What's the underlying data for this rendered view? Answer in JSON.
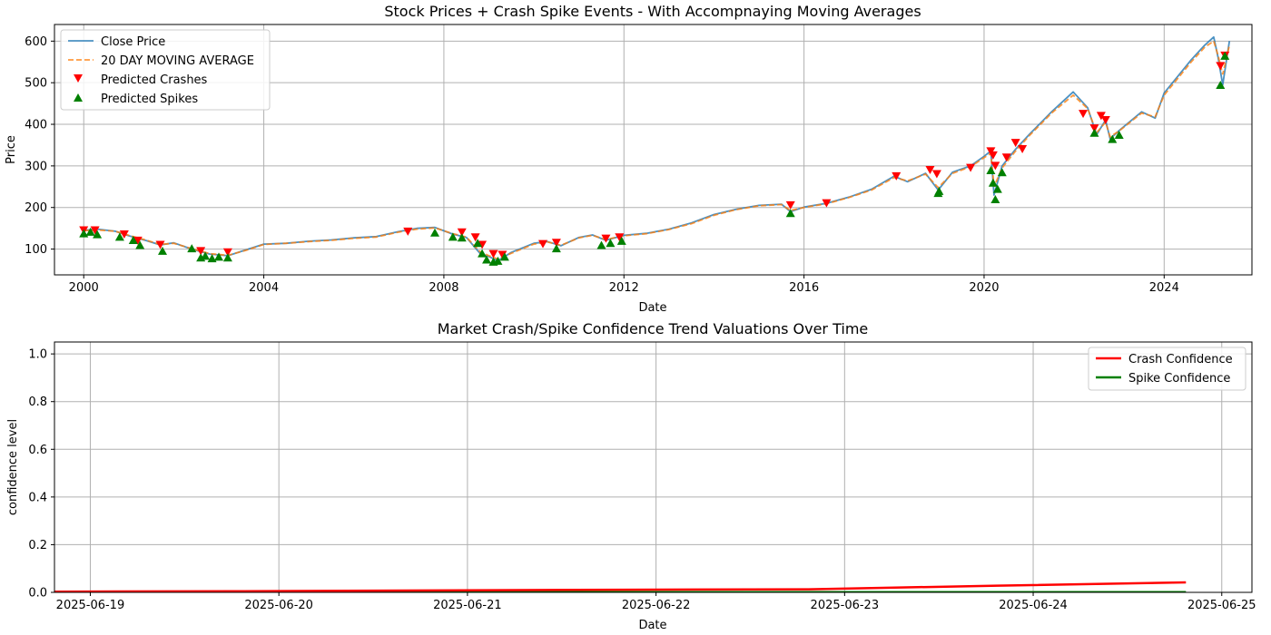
{
  "chart_data": [
    {
      "type": "line",
      "title": "Stock Prices + Crash Spike Events - With Accompnaying Moving Averages",
      "xlabel": "Date",
      "ylabel": "Price",
      "xlim": [
        1999.35,
        2025.95
      ],
      "ylim": [
        38,
        640
      ],
      "grid": true,
      "legend_position": "top-left",
      "x_ticks": [
        2000,
        2004,
        2008,
        2012,
        2016,
        2020,
        2024
      ],
      "x_tick_labels": [
        "2000",
        "2004",
        "2008",
        "2012",
        "2016",
        "2020",
        "2024"
      ],
      "y_ticks": [
        100,
        200,
        300,
        400,
        500,
        600
      ],
      "y_tick_labels": [
        "100",
        "200",
        "300",
        "400",
        "500",
        "600"
      ],
      "legend": [
        "Close Price",
        "20 DAY MOVING AVERAGE",
        "Predicted Crashes",
        "Predicted Spikes"
      ],
      "colors": {
        "close": "#1f77b4",
        "ma": "#ff7f0e",
        "crash": "#ff0000",
        "spike": "#008000"
      },
      "series": [
        {
          "name": "Close Price",
          "x": [
            2000.0,
            2000.3,
            2000.7,
            2001.0,
            2001.4,
            2001.7,
            2002.0,
            2002.4,
            2002.8,
            2003.2,
            2003.6,
            2004.0,
            2004.5,
            2005.0,
            2005.5,
            2006.0,
            2006.5,
            2007.0,
            2007.4,
            2007.8,
            2008.2,
            2008.5,
            2008.8,
            2009.0,
            2009.2,
            2009.5,
            2010.0,
            2010.3,
            2010.6,
            2011.0,
            2011.3,
            2011.6,
            2012.0,
            2012.5,
            2013.0,
            2013.5,
            2014.0,
            2014.5,
            2015.0,
            2015.5,
            2015.7,
            2016.0,
            2016.5,
            2017.0,
            2017.5,
            2018.0,
            2018.3,
            2018.7,
            2018.98,
            2019.3,
            2019.7,
            2020.0,
            2020.15,
            2020.22,
            2020.4,
            2020.7,
            2021.0,
            2021.5,
            2021.98,
            2022.3,
            2022.5,
            2022.7,
            2022.8,
            2023.0,
            2023.5,
            2023.8,
            2024.0,
            2024.3,
            2024.6,
            2024.9,
            2025.1,
            2025.2,
            2025.3,
            2025.45
          ],
          "y": [
            145,
            148,
            143,
            132,
            120,
            110,
            115,
            100,
            88,
            84,
            98,
            112,
            114,
            119,
            122,
            127,
            130,
            142,
            150,
            152,
            136,
            128,
            90,
            82,
            72,
            92,
            114,
            118,
            108,
            128,
            134,
            121,
            133,
            138,
            148,
            163,
            183,
            196,
            205,
            208,
            190,
            201,
            210,
            225,
            244,
            275,
            262,
            282,
            242,
            285,
            300,
            323,
            336,
            230,
            300,
            340,
            375,
            430,
            478,
            440,
            375,
            410,
            365,
            385,
            430,
            415,
            475,
            515,
            555,
            590,
            610,
            560,
            495,
            600
          ]
        },
        {
          "name": "20 DAY MOVING AVERAGE",
          "x": [
            2000.0,
            2000.3,
            2000.7,
            2001.0,
            2001.4,
            2001.7,
            2002.0,
            2002.4,
            2002.8,
            2003.2,
            2003.6,
            2004.0,
            2004.5,
            2005.0,
            2005.5,
            2006.0,
            2006.5,
            2007.0,
            2007.4,
            2007.8,
            2008.2,
            2008.5,
            2008.8,
            2009.0,
            2009.2,
            2009.5,
            2010.0,
            2010.3,
            2010.6,
            2011.0,
            2011.3,
            2011.6,
            2012.0,
            2012.5,
            2013.0,
            2013.5,
            2014.0,
            2014.5,
            2015.0,
            2015.5,
            2015.7,
            2016.0,
            2016.5,
            2017.0,
            2017.5,
            2018.0,
            2018.3,
            2018.7,
            2018.98,
            2019.3,
            2019.7,
            2020.0,
            2020.15,
            2020.22,
            2020.4,
            2020.7,
            2021.0,
            2021.5,
            2021.98,
            2022.3,
            2022.5,
            2022.7,
            2022.8,
            2023.0,
            2023.5,
            2023.8,
            2024.0,
            2024.3,
            2024.6,
            2024.9,
            2025.1,
            2025.2,
            2025.3,
            2025.45
          ],
          "y": [
            144,
            146,
            143,
            133,
            121,
            111,
            114,
            101,
            89,
            85,
            97,
            111,
            114,
            118,
            121,
            126,
            129,
            141,
            148,
            151,
            137,
            129,
            94,
            84,
            76,
            90,
            112,
            117,
            109,
            127,
            133,
            123,
            132,
            137,
            147,
            161,
            181,
            195,
            204,
            207,
            193,
            200,
            209,
            224,
            242,
            272,
            264,
            280,
            248,
            282,
            298,
            320,
            330,
            250,
            295,
            336,
            372,
            427,
            470,
            438,
            380,
            405,
            370,
            384,
            427,
            418,
            470,
            510,
            550,
            585,
            600,
            565,
            520,
            590
          ]
        }
      ],
      "crash_points": {
        "x": [
          2000.0,
          2000.25,
          2000.9,
          2001.2,
          2001.7,
          2002.6,
          2003.2,
          2007.2,
          2008.4,
          2008.7,
          2008.85,
          2009.1,
          2009.3,
          2010.2,
          2010.5,
          2011.6,
          2011.9,
          2015.7,
          2016.5,
          2018.05,
          2018.8,
          2018.95,
          2019.7,
          2020.15,
          2020.2,
          2020.25,
          2020.5,
          2020.7,
          2020.85,
          2022.2,
          2022.45,
          2022.6,
          2022.7,
          2025.25,
          2025.35
        ],
        "y": [
          145,
          145,
          135,
          120,
          110,
          95,
          92,
          142,
          140,
          128,
          110,
          88,
          86,
          112,
          115,
          125,
          128,
          205,
          210,
          275,
          290,
          280,
          295,
          335,
          325,
          300,
          320,
          355,
          340,
          425,
          390,
          420,
          410,
          540,
          565
        ]
      },
      "spike_points": {
        "x": [
          2000.0,
          2000.15,
          2000.3,
          2000.8,
          2001.1,
          2001.25,
          2001.75,
          2002.4,
          2002.6,
          2002.7,
          2002.85,
          2003.0,
          2003.2,
          2007.8,
          2008.2,
          2008.4,
          2008.75,
          2008.85,
          2008.95,
          2009.1,
          2009.2,
          2009.35,
          2010.5,
          2011.5,
          2011.7,
          2011.95,
          2015.7,
          2018.98,
          2019.0,
          2020.15,
          2020.2,
          2020.25,
          2020.3,
          2020.4,
          2022.45,
          2022.85,
          2023.0,
          2025.25,
          2025.35
        ],
        "y": [
          138,
          142,
          136,
          130,
          122,
          110,
          96,
          102,
          80,
          84,
          78,
          82,
          80,
          140,
          130,
          128,
          115,
          90,
          75,
          70,
          72,
          82,
          102,
          110,
          115,
          120,
          187,
          235,
          240,
          290,
          260,
          220,
          245,
          285,
          380,
          365,
          375,
          495,
          565
        ]
      }
    },
    {
      "type": "line",
      "title": "Market Crash/Spike Confidence Trend Valuations Over Time",
      "xlabel": "Date",
      "ylabel": "confidence level",
      "xlim": [
        -0.19,
        6.16
      ],
      "ylim": [
        0,
        1.05
      ],
      "grid": true,
      "legend_position": "top-right",
      "x_ticks": [
        0,
        1,
        2,
        3,
        4,
        5,
        6
      ],
      "x_tick_labels": [
        "2025-06-19",
        "2025-06-20",
        "2025-06-21",
        "2025-06-22",
        "2025-06-23",
        "2025-06-24",
        "2025-06-25"
      ],
      "y_ticks": [
        0.0,
        0.2,
        0.4,
        0.6,
        0.8,
        1.0
      ],
      "y_tick_labels": [
        "0.0",
        "0.2",
        "0.4",
        "0.6",
        "0.8",
        "1.0"
      ],
      "legend": [
        "Crash Confidence",
        "Spike Confidence"
      ],
      "colors": {
        "crash": "#ff0000",
        "spike": "#008000"
      },
      "series": [
        {
          "name": "Crash Confidence",
          "x": [
            -0.19,
            0.81,
            1.81,
            2.81,
            3.81,
            4.81,
            5.81
          ],
          "y": [
            0.003,
            0.005,
            0.008,
            0.011,
            0.013,
            0.028,
            0.042
          ]
        },
        {
          "name": "Spike Confidence",
          "x": [
            -0.19,
            0.81,
            1.81,
            2.81,
            3.81,
            4.81,
            5.81
          ],
          "y": [
            0.001,
            0.001,
            0.001,
            0.001,
            0.001,
            0.001,
            0.001
          ]
        }
      ]
    }
  ]
}
